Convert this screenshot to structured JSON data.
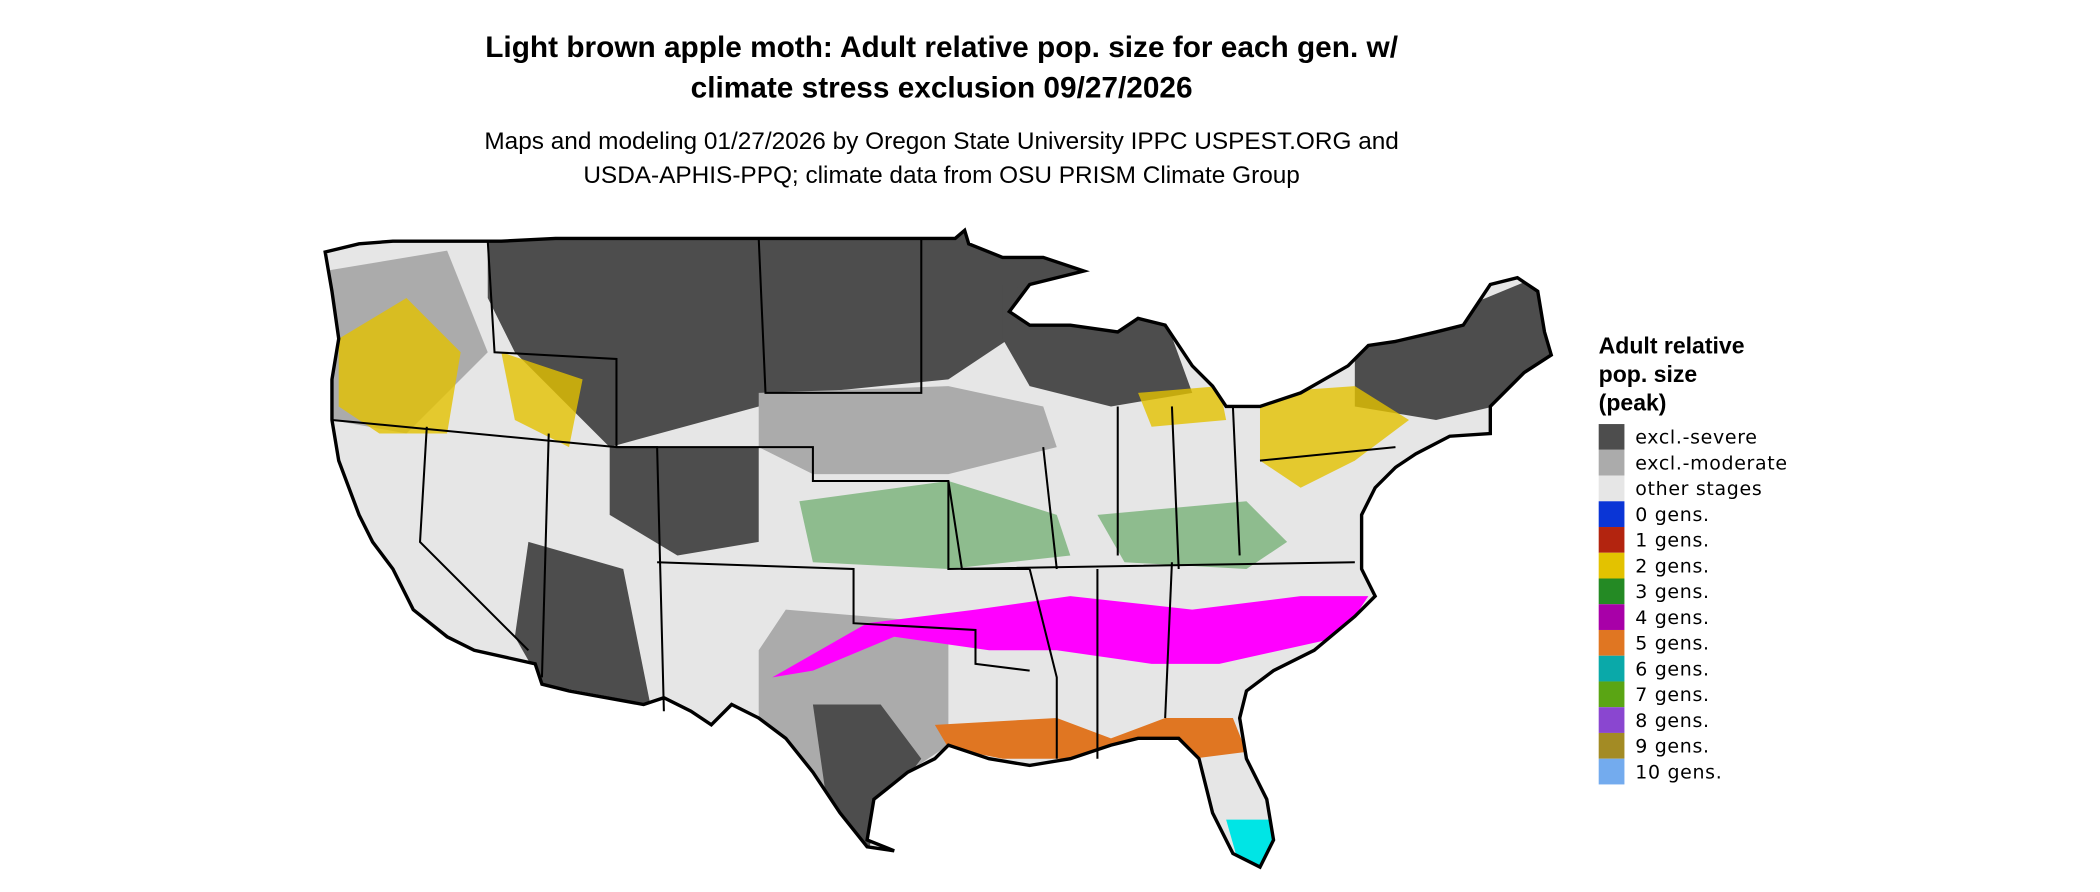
{
  "header": {
    "title": [
      "Light brown apple moth: Adult relative pop. size for each gen. w/",
      "climate stress exclusion 09/27/2026"
    ],
    "subtitle": [
      "Maps and modeling 01/27/2026 by Oregon State University IPPC USPEST.ORG and",
      "USDA-APHIS-PPQ; climate data from OSU PRISM Climate Group"
    ]
  },
  "legend": {
    "title": [
      "Adult relative",
      "pop. size",
      "(peak)"
    ],
    "items": [
      {
        "label": "excl.-severe",
        "color": "#4d4d4d"
      },
      {
        "label": "excl.-moderate",
        "color": "#ababab"
      },
      {
        "label": "other stages",
        "color": "#e6e6e6"
      },
      {
        "label": "0 gens.",
        "color": "#0a35d6"
      },
      {
        "label": "1 gens.",
        "color": "#b3240f"
      },
      {
        "label": "2 gens.",
        "color": "#e3c200"
      },
      {
        "label": "3 gens.",
        "color": "#248a24"
      },
      {
        "label": "4 gens.",
        "color": "#a800a8"
      },
      {
        "label": "5 gens.",
        "color": "#e07622"
      },
      {
        "label": "6 gens.",
        "color": "#0aa9a9"
      },
      {
        "label": "7 gens.",
        "color": "#5aa514"
      },
      {
        "label": "8 gens.",
        "color": "#8a46d0"
      },
      {
        "label": "9 gens.",
        "color": "#a38b24"
      },
      {
        "label": "10 gens.",
        "color": "#73abee"
      }
    ]
  }
}
